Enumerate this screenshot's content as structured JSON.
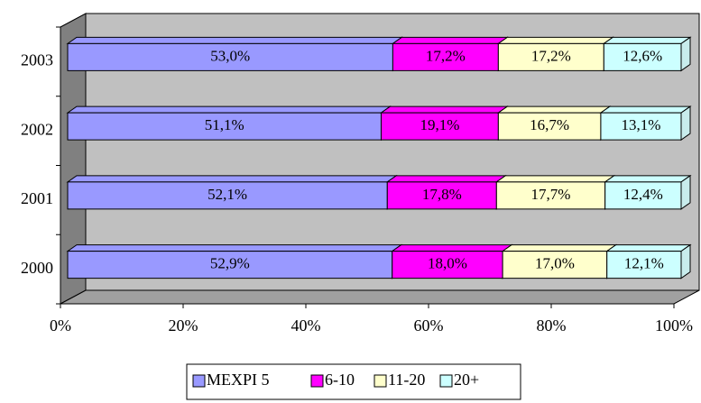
{
  "chart_data": {
    "type": "bar3d_stacked_horizontal",
    "categories": [
      "2000",
      "2001",
      "2002",
      "2003"
    ],
    "series": [
      {
        "name": "MEXPI 5",
        "color": "#9999ff",
        "values": [
          52.9,
          52.1,
          51.1,
          53.0
        ],
        "value_labels": [
          "52,9%",
          "52,1%",
          "51,1%",
          "53,0%"
        ]
      },
      {
        "name": "6-10",
        "color": "#ff00ff",
        "values": [
          18.0,
          17.8,
          19.1,
          17.2
        ],
        "value_labels": [
          "18,0%",
          "17,8%",
          "19,1%",
          "17,2%"
        ]
      },
      {
        "name": "11-20",
        "color": "#ffffcc",
        "values": [
          17.0,
          17.7,
          16.7,
          17.2
        ],
        "value_labels": [
          "17,0%",
          "17,7%",
          "16,7%",
          "17,2%"
        ]
      },
      {
        "name": "20+",
        "color": "#ccffff",
        "values": [
          12.1,
          12.4,
          13.1,
          12.6
        ],
        "value_labels": [
          "12,1%",
          "12,4%",
          "13,1%",
          "12,6%"
        ]
      }
    ],
    "xlim": [
      0,
      100
    ],
    "xticks": [
      {
        "value": 0,
        "label": "0%"
      },
      {
        "value": 20,
        "label": "20%"
      },
      {
        "value": 40,
        "label": "40%"
      },
      {
        "value": 60,
        "label": "60%"
      },
      {
        "value": 80,
        "label": "80%"
      },
      {
        "value": 100,
        "label": "100%"
      }
    ],
    "legend": "bottom"
  }
}
